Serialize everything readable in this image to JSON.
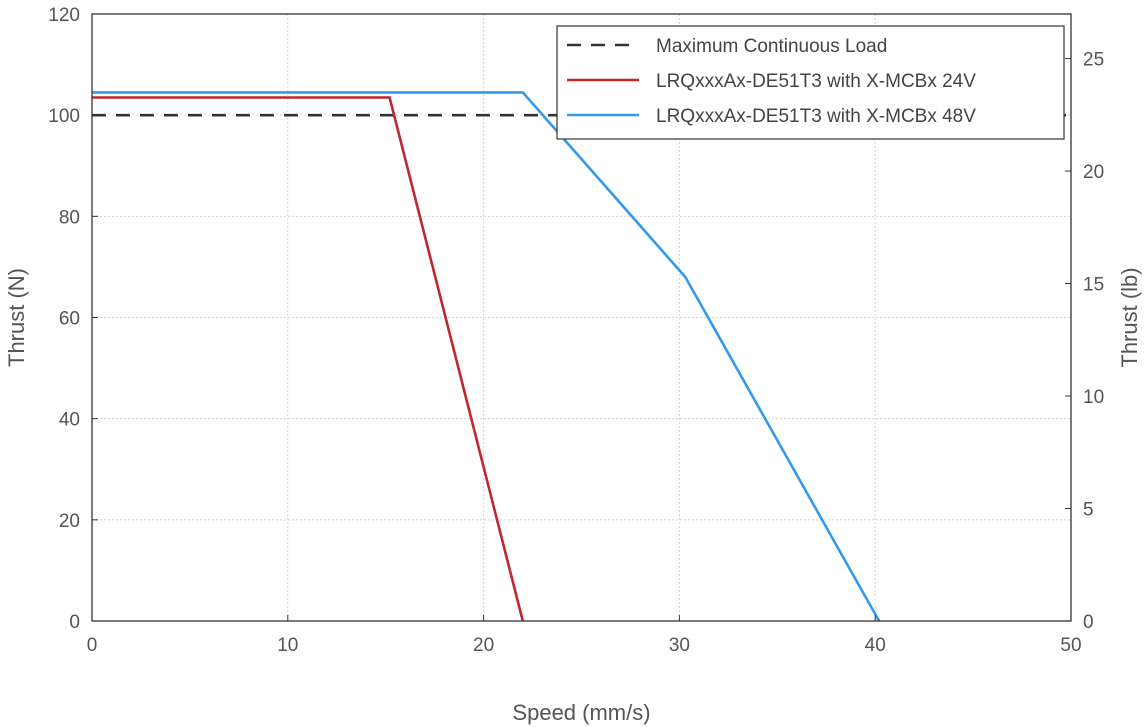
{
  "chart_data": {
    "type": "line",
    "title": "",
    "xlabel": "Speed (mm/s)",
    "ylabel": "Thrust (N)",
    "y2label": "Thrust (lb)",
    "xlim": [
      0,
      50
    ],
    "ylim": [
      0,
      120
    ],
    "y2lim": [
      0,
      26.98
    ],
    "xticks": [
      "0",
      "10",
      "20",
      "30",
      "40",
      "50"
    ],
    "yticks": [
      "0",
      "20",
      "40",
      "60",
      "80",
      "100",
      "120"
    ],
    "y2ticks": [
      "0",
      "5",
      "10",
      "15",
      "20",
      "25"
    ],
    "grid": true,
    "legend_position": "top-right",
    "series": [
      {
        "name": "Maximum Continuous Load",
        "style": "dashed",
        "color": "#333333",
        "x": [
          0,
          50
        ],
        "y": [
          100,
          100
        ]
      },
      {
        "name": "LRQxxxAx-DE51T3 with X-MCBx 24V",
        "style": "solid",
        "color": "#c1272d",
        "x": [
          0,
          15.2,
          22
        ],
        "y": [
          103.5,
          103.5,
          0
        ]
      },
      {
        "name": "LRQxxxAx-DE51T3 with X-MCBx 48V",
        "style": "solid",
        "color": "#3399ee",
        "x": [
          0,
          22,
          30.3,
          40.2
        ],
        "y": [
          104.5,
          104.5,
          68,
          0
        ]
      }
    ]
  }
}
